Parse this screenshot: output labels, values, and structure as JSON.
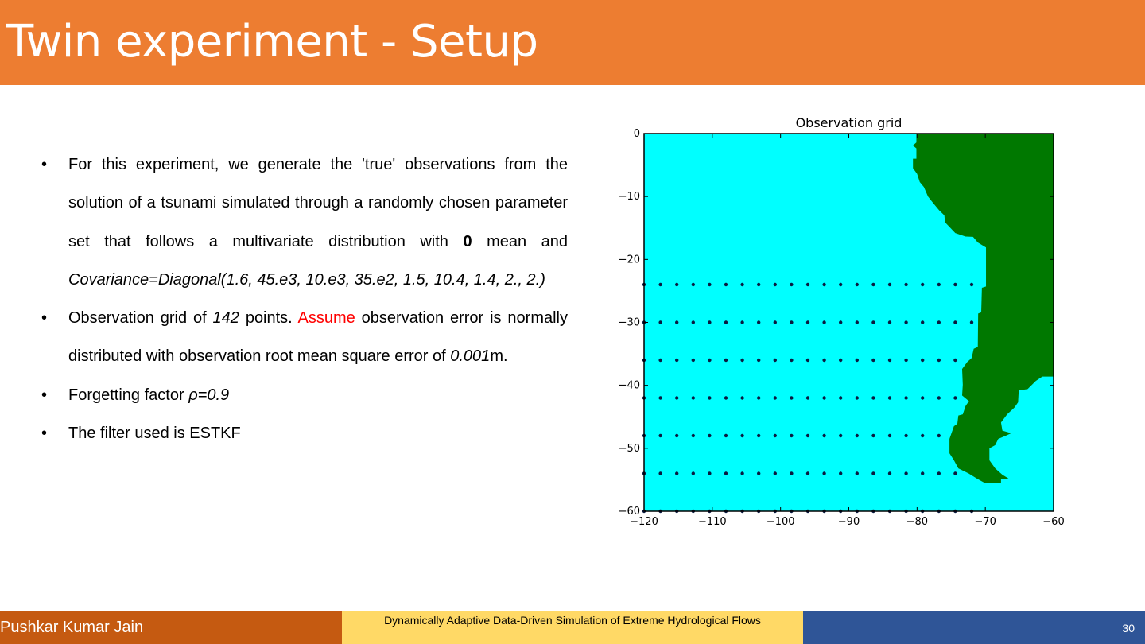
{
  "slide": {
    "title": "Twin experiment - Setup"
  },
  "bullets": [
    {
      "segments": [
        {
          "text": "For this experiment, we generate the 'true' observations from the solution of a tsunami simulated through a randomly chosen parameter set that follows a multivariate distribution with ",
          "style": "normal"
        },
        {
          "text": "0",
          "style": "bold"
        },
        {
          "text": " mean and ",
          "style": "normal"
        },
        {
          "text": "Covariance=Diagonal(1.6, 45.e3, 10.e3, 35.e2, 1.5, 10.4, 1.4, 2., 2.)",
          "style": "italic"
        }
      ]
    },
    {
      "segments": [
        {
          "text": "Observation grid of ",
          "style": "normal"
        },
        {
          "text": "142",
          "style": "italic"
        },
        {
          "text": " points. ",
          "style": "normal"
        },
        {
          "text": "Assume",
          "style": "red"
        },
        {
          "text": " observation error is normally distributed with observation root mean square error of ",
          "style": "normal"
        },
        {
          "text": "0.001",
          "style": "italic"
        },
        {
          "text": "m.",
          "style": "normal"
        }
      ]
    },
    {
      "segments": [
        {
          "text": " Forgetting factor ",
          "style": "normal"
        },
        {
          "text": "ρ=0.9",
          "style": "italic"
        }
      ]
    },
    {
      "segments": [
        {
          "text": "The filter used is ESTKF",
          "style": "normal"
        }
      ]
    }
  ],
  "bullet_glyph": "•",
  "chart_data": {
    "type": "scatter",
    "title": "Observation grid",
    "xlim": [
      -120,
      -60
    ],
    "ylim": [
      -60,
      0
    ],
    "xticks": [
      -120,
      -110,
      -100,
      -90,
      -80,
      -70,
      -60
    ],
    "yticks": [
      0,
      -10,
      -20,
      -30,
      -40,
      -50,
      -60
    ],
    "xtick_labels": [
      "−120",
      "−110",
      "−100",
      "−90",
      "−80",
      "−70",
      "−60"
    ],
    "ytick_labels": [
      "0",
      "−10",
      "−20",
      "−30",
      "−40",
      "−50",
      "−60"
    ],
    "grid": false,
    "colors": {
      "ocean": "#00FFFF",
      "land": "#007800",
      "points": "#0a1a40"
    },
    "observation_rows": [
      {
        "lat": -24,
        "lon_start": -120,
        "lon_step": 2.4,
        "count": 21
      },
      {
        "lat": -30,
        "lon_start": -120,
        "lon_step": 2.4,
        "count": 21
      },
      {
        "lat": -36,
        "lon_start": -120,
        "lon_step": 2.4,
        "count": 20
      },
      {
        "lat": -42,
        "lon_start": -120,
        "lon_step": 2.4,
        "count": 20
      },
      {
        "lat": -48,
        "lon_start": -120,
        "lon_step": 2.4,
        "count": 19
      },
      {
        "lat": -54,
        "lon_start": -120,
        "lon_step": 2.4,
        "count": 20
      },
      {
        "lat": -60,
        "lon_start": -120,
        "lon_step": 2.4,
        "count": 21
      }
    ],
    "land_polygon": [
      [
        -80.1,
        0
      ],
      [
        -80.1,
        -1.4
      ],
      [
        -80.6,
        -1.9
      ],
      [
        -80.1,
        -2.35
      ],
      [
        -80.1,
        -4.0
      ],
      [
        -80.6,
        -4.0
      ],
      [
        -80.6,
        -5.5
      ],
      [
        -80.0,
        -6.4
      ],
      [
        -79.6,
        -7.7
      ],
      [
        -79.0,
        -8.5
      ],
      [
        -78.4,
        -10.0
      ],
      [
        -77.6,
        -11.1
      ],
      [
        -76.75,
        -12.2
      ],
      [
        -76.0,
        -13.0
      ],
      [
        -75.9,
        -14.1
      ],
      [
        -74.4,
        -15.8
      ],
      [
        -72.9,
        -16.35
      ],
      [
        -71.8,
        -16.4
      ],
      [
        -71.1,
        -17.3
      ],
      [
        -69.9,
        -18.1
      ],
      [
        -69.9,
        -24.3
      ],
      [
        -70.5,
        -24.5
      ],
      [
        -70.6,
        -28.4
      ],
      [
        -71.05,
        -28.6
      ],
      [
        -71.1,
        -33.9
      ],
      [
        -71.7,
        -34.2
      ],
      [
        -72.0,
        -35.65
      ],
      [
        -72.65,
        -36.3
      ],
      [
        -73.4,
        -37.4
      ],
      [
        -73.3,
        -39.9
      ],
      [
        -73.4,
        -41.6
      ],
      [
        -72.4,
        -42.5
      ],
      [
        -72.9,
        -43.3
      ],
      [
        -73.3,
        -44.6
      ],
      [
        -73.95,
        -44.8
      ],
      [
        -74.1,
        -46.1
      ],
      [
        -74.6,
        -46.5
      ],
      [
        -75.25,
        -48.5
      ],
      [
        -75.25,
        -50.8
      ],
      [
        -74.6,
        -51.9
      ],
      [
        -73.95,
        -53.2
      ],
      [
        -72.45,
        -54.0
      ],
      [
        -71.1,
        -54.9
      ],
      [
        -70.1,
        -55.5
      ],
      [
        -67.7,
        -55.5
      ],
      [
        -67.7,
        -54.9
      ],
      [
        -66.6,
        -54.8
      ],
      [
        -67.5,
        -54.2
      ],
      [
        -68.55,
        -53.2
      ],
      [
        -69.4,
        -51.9
      ],
      [
        -69.4,
        -50.0
      ],
      [
        -68.55,
        -49.5
      ],
      [
        -68.1,
        -48.5
      ],
      [
        -67.0,
        -48.0
      ],
      [
        -66.2,
        -47.6
      ],
      [
        -67.5,
        -47.2
      ],
      [
        -67.7,
        -45.9
      ],
      [
        -66.8,
        -44.6
      ],
      [
        -65.75,
        -43.55
      ],
      [
        -65.2,
        -42.7
      ],
      [
        -65.1,
        -40.8
      ],
      [
        -63.8,
        -40.6
      ],
      [
        -62.6,
        -39.3
      ],
      [
        -61.65,
        -38.6
      ],
      [
        -60,
        -38.6
      ],
      [
        -60,
        0
      ]
    ]
  },
  "footer": {
    "author": "Pushkar Kumar Jain",
    "project": "Dynamically Adaptive Data-Driven Simulation of Extreme Hydrological Flows",
    "page_number": "30"
  }
}
